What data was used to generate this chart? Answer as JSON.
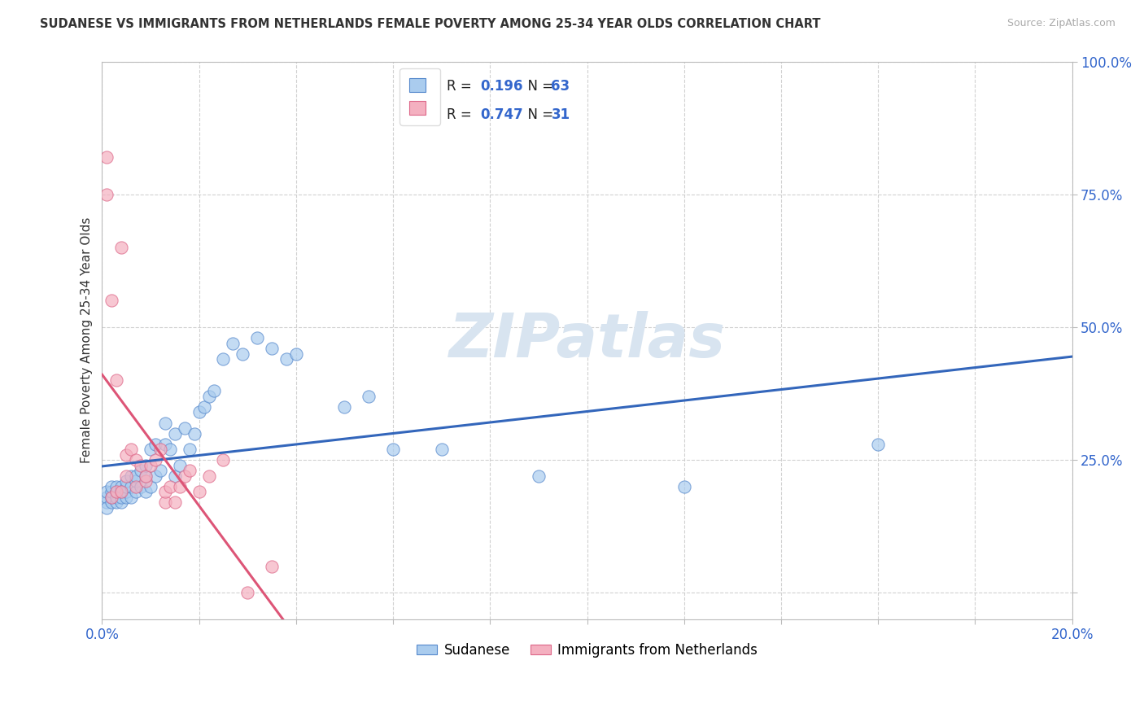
{
  "title": "SUDANESE VS IMMIGRANTS FROM NETHERLANDS FEMALE POVERTY AMONG 25-34 YEAR OLDS CORRELATION CHART",
  "source": "Source: ZipAtlas.com",
  "ylabel": "Female Poverty Among 25-34 Year Olds",
  "blue_R": 0.196,
  "blue_N": 63,
  "pink_R": 0.747,
  "pink_N": 31,
  "blue_fill": "#aaccee",
  "blue_edge": "#5588cc",
  "pink_fill": "#f4b0c0",
  "pink_edge": "#dd6688",
  "blue_line": "#3366bb",
  "pink_line": "#dd5577",
  "label_blue": "Sudanese",
  "label_pink": "Immigrants from Netherlands",
  "axis_color": "#3366cc",
  "text_color": "#333333",
  "watermark_color": "#d8e4f0",
  "blue_x": [
    0.001,
    0.001,
    0.001,
    0.001,
    0.002,
    0.002,
    0.002,
    0.002,
    0.003,
    0.003,
    0.003,
    0.003,
    0.004,
    0.004,
    0.004,
    0.004,
    0.005,
    0.005,
    0.005,
    0.005,
    0.006,
    0.006,
    0.006,
    0.007,
    0.007,
    0.007,
    0.008,
    0.008,
    0.009,
    0.009,
    0.009,
    0.01,
    0.01,
    0.011,
    0.011,
    0.012,
    0.013,
    0.013,
    0.014,
    0.015,
    0.015,
    0.016,
    0.017,
    0.018,
    0.019,
    0.02,
    0.021,
    0.022,
    0.023,
    0.025,
    0.027,
    0.029,
    0.032,
    0.035,
    0.038,
    0.04,
    0.05,
    0.055,
    0.06,
    0.07,
    0.09,
    0.12,
    0.16
  ],
  "blue_y": [
    0.17,
    0.18,
    0.19,
    0.16,
    0.17,
    0.18,
    0.19,
    0.2,
    0.17,
    0.18,
    0.19,
    0.2,
    0.17,
    0.18,
    0.19,
    0.2,
    0.18,
    0.19,
    0.2,
    0.21,
    0.18,
    0.2,
    0.22,
    0.19,
    0.21,
    0.22,
    0.2,
    0.23,
    0.19,
    0.22,
    0.24,
    0.2,
    0.27,
    0.22,
    0.28,
    0.23,
    0.28,
    0.32,
    0.27,
    0.3,
    0.22,
    0.24,
    0.31,
    0.27,
    0.3,
    0.34,
    0.35,
    0.37,
    0.38,
    0.44,
    0.47,
    0.45,
    0.48,
    0.46,
    0.44,
    0.45,
    0.35,
    0.37,
    0.27,
    0.27,
    0.22,
    0.2,
    0.28
  ],
  "pink_x": [
    0.001,
    0.001,
    0.002,
    0.002,
    0.003,
    0.003,
    0.004,
    0.004,
    0.005,
    0.005,
    0.006,
    0.007,
    0.007,
    0.008,
    0.009,
    0.009,
    0.01,
    0.011,
    0.012,
    0.013,
    0.013,
    0.014,
    0.015,
    0.016,
    0.017,
    0.018,
    0.02,
    0.022,
    0.025,
    0.03,
    0.035
  ],
  "pink_y": [
    0.82,
    0.75,
    0.55,
    0.18,
    0.4,
    0.19,
    0.65,
    0.19,
    0.26,
    0.22,
    0.27,
    0.25,
    0.2,
    0.24,
    0.21,
    0.22,
    0.24,
    0.25,
    0.27,
    0.17,
    0.19,
    0.2,
    0.17,
    0.2,
    0.22,
    0.23,
    0.19,
    0.22,
    0.25,
    0.0,
    0.05
  ],
  "xlim": [
    0.0,
    0.2
  ],
  "ylim": [
    -0.05,
    1.0
  ],
  "x_ticks": [
    0.0,
    0.02,
    0.04,
    0.06,
    0.08,
    0.1,
    0.12,
    0.14,
    0.16,
    0.18,
    0.2
  ],
  "y_ticks": [
    0.0,
    0.25,
    0.5,
    0.75,
    1.0
  ],
  "y_tick_labels": [
    "",
    "25.0%",
    "50.0%",
    "75.0%",
    "100.0%"
  ]
}
